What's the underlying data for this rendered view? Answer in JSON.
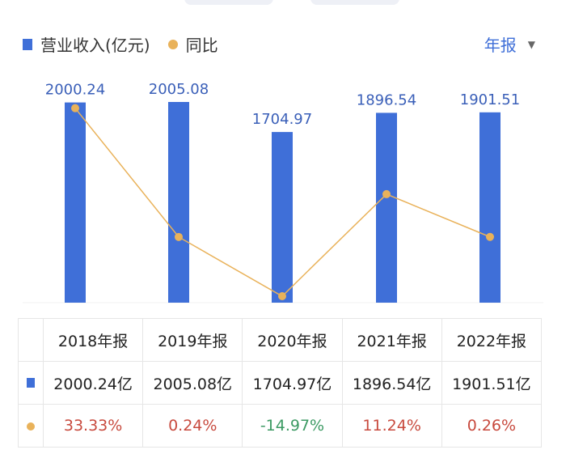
{
  "legend": {
    "revenue": "营业收入(亿元)",
    "yoy": "同比"
  },
  "period_selector": {
    "label": "年报"
  },
  "colors": {
    "bar": "#3f6fd8",
    "line": "#e9b25a",
    "positive": "#c84a3e",
    "negative": "#3c9a63"
  },
  "chart_data": {
    "type": "bar",
    "categories": [
      "2018年报",
      "2019年报",
      "2020年报",
      "2021年报",
      "2022年报"
    ],
    "series": [
      {
        "name": "营业收入(亿元)",
        "type": "bar",
        "values": [
          2000.24,
          2005.08,
          1704.97,
          1896.54,
          1901.51
        ]
      },
      {
        "name": "同比",
        "type": "line",
        "values": [
          33.33,
          0.24,
          -14.97,
          11.24,
          0.26
        ]
      }
    ],
    "value_labels": [
      "2000.24",
      "2005.08",
      "1704.97",
      "1896.54",
      "1901.51"
    ],
    "legend": "top-left"
  },
  "table": {
    "headers": [
      "2018年报",
      "2019年报",
      "2020年报",
      "2021年报",
      "2022年报"
    ],
    "revenue": [
      "2000.24亿",
      "2005.08亿",
      "1704.97亿",
      "1896.54亿",
      "1901.51亿"
    ],
    "yoy": [
      "33.33%",
      "0.24%",
      "-14.97%",
      "11.24%",
      "0.26%"
    ]
  }
}
